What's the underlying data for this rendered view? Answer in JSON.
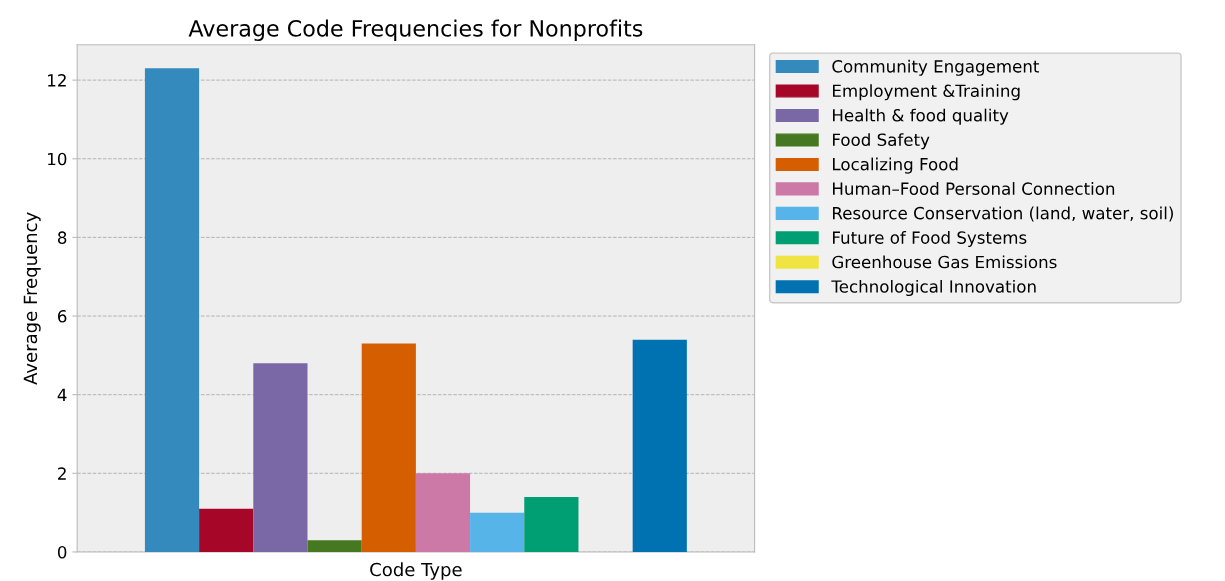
{
  "chart_data": {
    "type": "bar",
    "title": "Average Code Frequencies for Nonprofits",
    "xlabel": "Code Type",
    "ylabel": "Average Frequency",
    "categories": [
      null
    ],
    "series": [
      {
        "name": "Community Engagement",
        "color": "#348abd",
        "values": [
          12.3
        ]
      },
      {
        "name": "Employment &Training",
        "color": "#a60628",
        "values": [
          1.1
        ]
      },
      {
        "name": "Health & food quality",
        "color": "#7a68a6",
        "values": [
          4.8
        ]
      },
      {
        "name": "Food Safety",
        "color": "#467821",
        "values": [
          0.3
        ]
      },
      {
        "name": "Localizing Food",
        "color": "#d55e00",
        "values": [
          5.3
        ]
      },
      {
        "name": "Human–Food Personal Connection",
        "color": "#cc79a7",
        "values": [
          2.0
        ]
      },
      {
        "name": "Resource Conservation (land, water, soil)",
        "color": "#56b4e9",
        "values": [
          1.0
        ]
      },
      {
        "name": "Future of Food Systems",
        "color": "#009e73",
        "values": [
          1.4
        ]
      },
      {
        "name": "Greenhouse Gas Emissions",
        "color": "#f0e442",
        "values": [
          0.0
        ]
      },
      {
        "name": "Technological Innovation",
        "color": "#0072b2",
        "values": [
          5.4
        ]
      }
    ],
    "ylim": [
      0,
      12.9
    ],
    "yticks": [
      0,
      2,
      4,
      6,
      8,
      10,
      12
    ],
    "grid": "y",
    "legend": "right"
  }
}
